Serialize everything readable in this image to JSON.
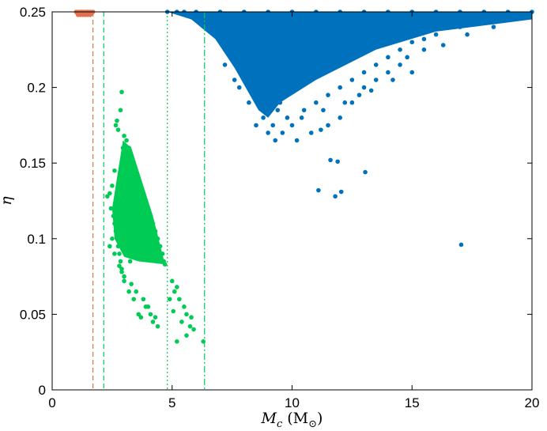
{
  "chart_data": {
    "type": "scatter",
    "title": "",
    "xlabel_symbol": "M",
    "xlabel_subscript": "c",
    "xlabel_unit": "(M",
    "xlabel_unit_sub": "⊙",
    "xlabel_unit_close": ")",
    "ylabel": "η",
    "xlim": [
      0,
      20
    ],
    "ylim": [
      0,
      0.25
    ],
    "xticks": [
      0,
      5,
      10,
      15,
      20
    ],
    "xtick_labels": [
      "0",
      "5",
      "10",
      "15",
      "20"
    ],
    "yticks": [
      0,
      0.05,
      0.1,
      0.15,
      0.2,
      0.25
    ],
    "ytick_labels": [
      "0",
      "0.05",
      "0.1",
      "0.15",
      "0.2",
      "0.25"
    ],
    "grid": false,
    "legend": "none",
    "colors": {
      "orange": "#e07050",
      "green": "#00cc55",
      "blue": "#0072bd"
    },
    "vlines": [
      {
        "x": 1.7,
        "color": "#e07050",
        "style": "dashed"
      },
      {
        "x": 2.15,
        "color": "#00cc55",
        "style": "dashed"
      },
      {
        "x": 4.8,
        "color": "#00cc55",
        "style": "dotted"
      },
      {
        "x": 6.35,
        "color": "#00cc55",
        "style": "dashdot"
      }
    ],
    "series": [
      {
        "color": "#e07050",
        "points": [
          [
            1.0,
            0.25
          ],
          [
            1.05,
            0.249
          ],
          [
            1.1,
            0.25
          ],
          [
            1.15,
            0.249
          ],
          [
            1.2,
            0.25
          ],
          [
            1.25,
            0.25
          ],
          [
            1.3,
            0.249
          ],
          [
            1.35,
            0.25
          ],
          [
            1.4,
            0.249
          ],
          [
            1.45,
            0.25
          ],
          [
            1.5,
            0.25
          ],
          [
            1.55,
            0.249
          ],
          [
            1.6,
            0.25
          ],
          [
            1.65,
            0.249
          ],
          [
            1.7,
            0.25
          ],
          [
            1.08,
            0.248
          ],
          [
            1.18,
            0.248
          ],
          [
            1.28,
            0.248
          ],
          [
            1.38,
            0.248
          ],
          [
            1.48,
            0.248
          ],
          [
            1.58,
            0.248
          ],
          [
            1.22,
            0.2495
          ],
          [
            1.42,
            0.2495
          ]
        ]
      },
      {
        "color": "#00cc55",
        "points": [
          [
            2.9,
            0.197
          ],
          [
            2.85,
            0.185
          ],
          [
            2.7,
            0.178
          ],
          [
            2.65,
            0.175
          ],
          [
            2.75,
            0.172
          ],
          [
            3.0,
            0.168
          ],
          [
            3.1,
            0.165
          ],
          [
            3.2,
            0.16
          ],
          [
            3.3,
            0.155
          ],
          [
            3.4,
            0.15
          ],
          [
            3.5,
            0.145
          ],
          [
            3.6,
            0.14
          ],
          [
            3.7,
            0.135
          ],
          [
            3.8,
            0.13
          ],
          [
            3.9,
            0.125
          ],
          [
            4.0,
            0.12
          ],
          [
            4.1,
            0.115
          ],
          [
            4.2,
            0.11
          ],
          [
            4.3,
            0.105
          ],
          [
            4.4,
            0.1
          ],
          [
            4.5,
            0.095
          ],
          [
            4.6,
            0.09
          ],
          [
            4.65,
            0.085
          ],
          [
            4.7,
            0.083
          ],
          [
            2.95,
            0.16
          ],
          [
            3.05,
            0.155
          ],
          [
            3.15,
            0.15
          ],
          [
            3.25,
            0.145
          ],
          [
            3.35,
            0.14
          ],
          [
            3.45,
            0.135
          ],
          [
            3.55,
            0.13
          ],
          [
            3.65,
            0.125
          ],
          [
            3.75,
            0.12
          ],
          [
            3.85,
            0.115
          ],
          [
            3.95,
            0.11
          ],
          [
            4.05,
            0.105
          ],
          [
            4.15,
            0.1
          ],
          [
            4.25,
            0.095
          ],
          [
            4.35,
            0.09
          ],
          [
            4.45,
            0.085
          ],
          [
            2.9,
            0.15
          ],
          [
            2.95,
            0.14
          ],
          [
            3.0,
            0.13
          ],
          [
            3.05,
            0.12
          ],
          [
            3.1,
            0.11
          ],
          [
            3.15,
            0.1
          ],
          [
            3.2,
            0.09
          ],
          [
            3.25,
            0.085
          ],
          [
            2.6,
            0.145
          ],
          [
            2.5,
            0.135
          ],
          [
            2.4,
            0.13
          ],
          [
            2.3,
            0.128
          ],
          [
            2.45,
            0.12
          ],
          [
            2.55,
            0.115
          ],
          [
            2.6,
            0.11
          ],
          [
            2.65,
            0.105
          ],
          [
            2.7,
            0.1
          ],
          [
            2.75,
            0.095
          ],
          [
            2.8,
            0.09
          ],
          [
            2.85,
            0.085
          ],
          [
            2.9,
            0.08
          ],
          [
            3.0,
            0.075
          ],
          [
            3.3,
            0.07
          ],
          [
            3.5,
            0.065
          ],
          [
            3.8,
            0.06
          ],
          [
            3.9,
            0.055
          ],
          [
            4.1,
            0.05
          ],
          [
            4.2,
            0.045
          ],
          [
            4.4,
            0.042
          ],
          [
            3.2,
            0.065
          ],
          [
            3.0,
            0.072
          ],
          [
            3.6,
            0.05
          ],
          [
            3.7,
            0.048
          ],
          [
            2.9,
            0.078
          ],
          [
            2.8,
            0.082
          ],
          [
            3.4,
            0.06
          ],
          [
            4.0,
            0.055
          ],
          [
            4.3,
            0.048
          ],
          [
            5.0,
            0.072
          ],
          [
            5.1,
            0.065
          ],
          [
            5.2,
            0.068
          ],
          [
            5.3,
            0.06
          ],
          [
            5.5,
            0.055
          ],
          [
            5.6,
            0.05
          ],
          [
            5.4,
            0.045
          ],
          [
            5.8,
            0.048
          ],
          [
            5.9,
            0.04
          ],
          [
            5.2,
            0.032
          ],
          [
            5.6,
            0.036
          ],
          [
            6.3,
            0.032
          ],
          [
            4.9,
            0.06
          ],
          [
            5.05,
            0.052
          ],
          [
            5.75,
            0.042
          ],
          [
            3.3,
            0.1
          ],
          [
            3.4,
            0.095
          ],
          [
            3.5,
            0.09
          ],
          [
            3.6,
            0.1
          ],
          [
            3.7,
            0.11
          ],
          [
            3.8,
            0.1
          ],
          [
            3.9,
            0.095
          ],
          [
            3.5,
            0.11
          ],
          [
            3.6,
            0.115
          ],
          [
            3.3,
            0.12
          ],
          [
            3.4,
            0.125
          ],
          [
            3.2,
            0.13
          ],
          [
            3.1,
            0.14
          ],
          [
            3.0,
            0.145
          ],
          [
            4.0,
            0.1
          ],
          [
            4.2,
            0.09
          ],
          [
            3.0,
            0.095
          ],
          [
            3.1,
            0.09
          ],
          [
            3.2,
            0.1
          ],
          [
            3.3,
            0.11
          ],
          [
            3.5,
            0.1
          ],
          [
            3.6,
            0.09
          ],
          [
            3.8,
            0.09
          ],
          [
            2.5,
            0.1
          ],
          [
            2.6,
            0.09
          ],
          [
            2.4,
            0.095
          ]
        ]
      },
      {
        "color": "#0072bd",
        "points": [
          [
            4.8,
            0.25
          ],
          [
            5.5,
            0.25
          ],
          [
            6.0,
            0.25
          ],
          [
            7.0,
            0.25
          ],
          [
            8.0,
            0.25
          ],
          [
            9.0,
            0.25
          ],
          [
            10.0,
            0.25
          ],
          [
            11.0,
            0.25
          ],
          [
            12.0,
            0.25
          ],
          [
            13.0,
            0.25
          ],
          [
            14.0,
            0.25
          ],
          [
            15.0,
            0.25
          ],
          [
            16.0,
            0.25
          ],
          [
            17.0,
            0.25
          ],
          [
            18.0,
            0.25
          ],
          [
            19.0,
            0.25
          ],
          [
            20.0,
            0.25
          ],
          [
            6.0,
            0.245
          ],
          [
            7.0,
            0.24
          ],
          [
            7.5,
            0.23
          ],
          [
            8.0,
            0.22
          ],
          [
            8.5,
            0.21
          ],
          [
            9.0,
            0.2
          ],
          [
            9.5,
            0.19
          ],
          [
            8.8,
            0.18
          ],
          [
            9.2,
            0.175
          ],
          [
            9.0,
            0.17
          ],
          [
            9.8,
            0.18
          ],
          [
            10.5,
            0.185
          ],
          [
            11.0,
            0.19
          ],
          [
            11.5,
            0.195
          ],
          [
            12.0,
            0.2
          ],
          [
            12.5,
            0.205
          ],
          [
            13.0,
            0.21
          ],
          [
            13.5,
            0.215
          ],
          [
            14.0,
            0.22
          ],
          [
            14.5,
            0.225
          ],
          [
            15.0,
            0.23
          ],
          [
            15.5,
            0.232
          ],
          [
            16.0,
            0.235
          ],
          [
            16.5,
            0.24
          ],
          [
            17.0,
            0.24
          ],
          [
            17.5,
            0.242
          ],
          [
            18.0,
            0.244
          ],
          [
            18.5,
            0.246
          ],
          [
            19.0,
            0.247
          ],
          [
            19.5,
            0.248
          ],
          [
            8.5,
            0.175
          ],
          [
            9.3,
            0.165
          ],
          [
            10.0,
            0.175
          ],
          [
            10.8,
            0.17
          ],
          [
            11.5,
            0.175
          ],
          [
            12.0,
            0.18
          ],
          [
            12.5,
            0.19
          ],
          [
            13.0,
            0.2
          ],
          [
            13.5,
            0.205
          ],
          [
            14.0,
            0.21
          ],
          [
            14.5,
            0.215
          ],
          [
            15.0,
            0.21
          ],
          [
            9.6,
            0.17
          ],
          [
            10.2,
            0.165
          ],
          [
            11.2,
            0.172
          ],
          [
            12.8,
            0.195
          ],
          [
            14.8,
            0.22
          ],
          [
            15.5,
            0.225
          ],
          [
            16.3,
            0.228
          ],
          [
            17.3,
            0.235
          ],
          [
            18.4,
            0.24
          ],
          [
            7.8,
            0.2
          ],
          [
            8.2,
            0.19
          ],
          [
            8.6,
            0.195
          ],
          [
            9.4,
            0.185
          ],
          [
            10.4,
            0.18
          ],
          [
            11.3,
            0.185
          ],
          [
            12.2,
            0.19
          ],
          [
            13.3,
            0.198
          ],
          [
            14.2,
            0.205
          ],
          [
            11.1,
            0.132
          ],
          [
            11.6,
            0.152
          ],
          [
            11.9,
            0.151
          ],
          [
            11.8,
            0.128
          ],
          [
            12.05,
            0.131
          ],
          [
            13.05,
            0.144
          ],
          [
            17.05,
            0.096
          ],
          [
            7.2,
            0.215
          ],
          [
            7.6,
            0.205
          ],
          [
            8.3,
            0.2
          ],
          [
            6.5,
            0.24
          ],
          [
            5.8,
            0.248
          ],
          [
            5.2,
            0.25
          ]
        ]
      }
    ]
  }
}
